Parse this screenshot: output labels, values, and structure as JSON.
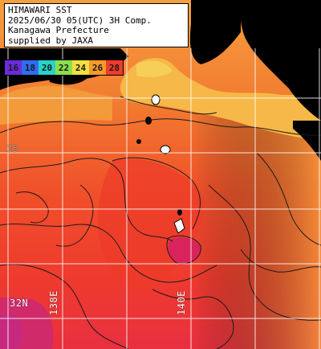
{
  "header": {
    "line1": "HIMAWARI SST",
    "line2": "2025/06/30 05(UTC) 3H Comp.",
    "line3": "Kanagawa Prefecture",
    "line4": "supplied by JAXA"
  },
  "legend": {
    "items": [
      {
        "label": "16",
        "color": "#6a2bd8"
      },
      {
        "label": "18",
        "color": "#2f6df0"
      },
      {
        "label": "20",
        "color": "#28d2c8"
      },
      {
        "label": "22",
        "color": "#8ae04c"
      },
      {
        "label": "24",
        "color": "#f0e040"
      },
      {
        "label": "26",
        "color": "#f79a2c"
      },
      {
        "label": "28",
        "color": "#f03a2c"
      }
    ]
  },
  "grid_labels": {
    "lat_bottom": "32N",
    "lat_upper": "35",
    "lon_left": "138E",
    "lon_right": "140E"
  },
  "colors": {
    "land": "#000000",
    "grid": "#ffffff",
    "contour": "#1a1a1a"
  }
}
